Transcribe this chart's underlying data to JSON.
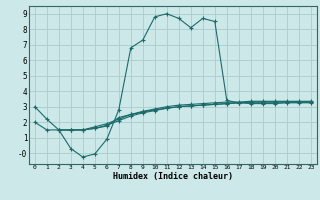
{
  "xlabel": "Humidex (Indice chaleur)",
  "xlim": [
    -0.5,
    23.5
  ],
  "ylim": [
    -0.7,
    9.5
  ],
  "xticks": [
    0,
    1,
    2,
    3,
    4,
    5,
    6,
    7,
    8,
    9,
    10,
    11,
    12,
    13,
    14,
    15,
    16,
    17,
    18,
    19,
    20,
    21,
    22,
    23
  ],
  "yticks": [
    0,
    1,
    2,
    3,
    4,
    5,
    6,
    7,
    8,
    9
  ],
  "bg_color": "#cce8e8",
  "grid_color": "#aacccc",
  "line_color": "#1a6b6b",
  "line1_x": [
    0,
    1,
    2,
    3,
    4,
    5,
    6,
    7,
    8,
    9,
    10,
    11,
    12,
    13,
    14,
    15,
    16,
    17,
    18,
    19,
    20,
    21,
    22,
    23
  ],
  "line1_y": [
    3.0,
    2.2,
    1.5,
    0.3,
    -0.25,
    -0.05,
    0.9,
    2.8,
    6.8,
    7.3,
    8.8,
    9.0,
    8.7,
    8.1,
    8.7,
    8.5,
    3.4,
    3.25,
    3.2,
    3.2,
    3.2,
    3.25,
    3.25,
    3.25
  ],
  "line2_x": [
    2,
    3,
    4,
    5,
    6,
    7,
    8,
    9,
    10,
    11,
    12,
    13,
    14,
    15,
    16,
    17,
    18,
    19,
    20,
    21,
    22,
    23
  ],
  "line2_y": [
    1.5,
    1.5,
    1.5,
    1.6,
    1.75,
    2.3,
    2.5,
    2.65,
    2.8,
    2.9,
    3.0,
    3.05,
    3.1,
    3.15,
    3.2,
    3.25,
    3.3,
    3.3,
    3.3,
    3.3,
    3.3,
    3.3
  ],
  "line3_x": [
    2,
    3,
    4,
    5,
    6,
    7,
    8,
    9,
    10,
    11,
    12,
    13,
    14,
    15,
    16,
    17,
    18,
    19,
    20,
    21,
    22,
    23
  ],
  "line3_y": [
    1.5,
    1.5,
    1.5,
    1.7,
    1.9,
    2.2,
    2.5,
    2.7,
    2.85,
    3.0,
    3.1,
    3.15,
    3.2,
    3.25,
    3.3,
    3.3,
    3.35,
    3.35,
    3.35,
    3.35,
    3.35,
    3.35
  ],
  "line4_x": [
    0,
    1,
    2,
    3,
    4,
    5,
    6,
    7,
    8,
    9,
    10,
    11,
    12,
    13,
    14,
    15,
    16,
    17,
    18,
    19,
    20,
    21,
    22,
    23
  ],
  "line4_y": [
    2.0,
    1.5,
    1.5,
    1.5,
    1.5,
    1.6,
    1.8,
    2.1,
    2.4,
    2.6,
    2.75,
    2.9,
    3.0,
    3.05,
    3.1,
    3.15,
    3.2,
    3.25,
    3.3,
    3.3,
    3.3,
    3.3,
    3.3,
    3.3
  ]
}
